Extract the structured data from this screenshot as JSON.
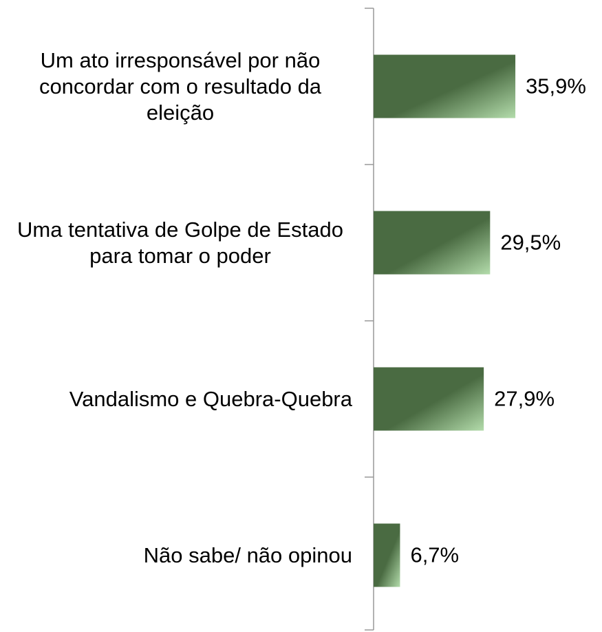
{
  "chart_data": {
    "type": "bar",
    "orientation": "horizontal",
    "categories": [
      "Um ato irresponsável por não concordar com o resultado da eleição",
      "Uma tentativa de Golpe de Estado para tomar o poder",
      "Vandalismo e Quebra-Quebra",
      "Não sabe/ não opinou"
    ],
    "values": [
      35.9,
      29.5,
      27.9,
      6.7
    ],
    "value_labels": [
      "35,9%",
      "29,5%",
      "27,9%",
      "6,7%"
    ],
    "color": "#4a6b42"
  }
}
